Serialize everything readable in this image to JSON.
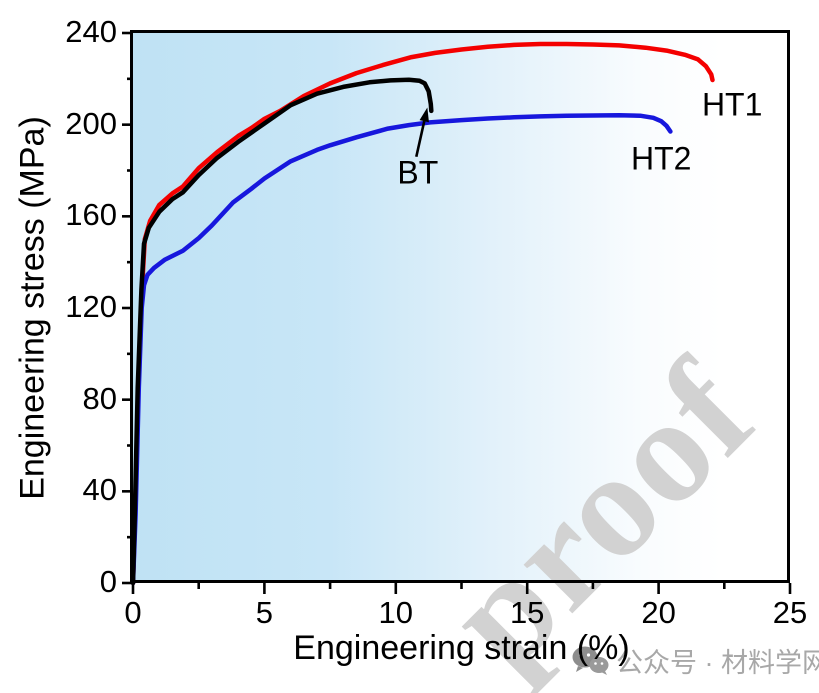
{
  "watermarks": {
    "proof": "proof",
    "credit": "公众号 · 材料学网"
  },
  "chart_data": {
    "type": "line",
    "title": "",
    "xlabel": "Engineering strain (%)",
    "ylabel": "Engineering stress (MPa)",
    "xlim": [
      0,
      25
    ],
    "ylim": [
      0,
      240
    ],
    "xticks": [
      0,
      5,
      10,
      15,
      20,
      25
    ],
    "yticks": [
      0,
      40,
      80,
      120,
      160,
      200,
      240
    ],
    "x_minor_ticks": [
      2.5,
      7.5,
      12.5,
      17.5,
      22.5
    ],
    "y_minor_ticks": [
      20,
      60,
      100,
      140,
      180,
      220
    ],
    "grid": false,
    "legend_position": "none",
    "plot_background": [
      "#bfe2f4",
      "#ffffff"
    ],
    "series": [
      {
        "name": "HT1",
        "color": "#f40000",
        "points": [
          [
            0,
            0
          ],
          [
            0.08,
            30
          ],
          [
            0.2,
            85
          ],
          [
            0.35,
            130
          ],
          [
            0.45,
            150
          ],
          [
            0.65,
            158
          ],
          [
            1,
            165
          ],
          [
            1.5,
            170
          ],
          [
            1.9,
            173
          ],
          [
            2.5,
            181
          ],
          [
            3.2,
            188
          ],
          [
            4,
            195
          ],
          [
            4.5,
            198.5
          ],
          [
            5,
            202.5
          ],
          [
            5.6,
            206
          ],
          [
            6.5,
            212.5
          ],
          [
            7.5,
            218
          ],
          [
            8.5,
            222.5
          ],
          [
            9.5,
            226
          ],
          [
            10.6,
            229.5
          ],
          [
            11.5,
            231.3
          ],
          [
            12.5,
            232.8
          ],
          [
            13.5,
            234
          ],
          [
            14.5,
            234.8
          ],
          [
            15.5,
            235.2
          ],
          [
            16.5,
            235.2
          ],
          [
            17.5,
            235
          ],
          [
            18.5,
            234.6
          ],
          [
            19.5,
            233.6
          ],
          [
            20.3,
            232.3
          ],
          [
            21,
            230.5
          ],
          [
            21.5,
            228.5
          ],
          [
            21.8,
            225.5
          ],
          [
            22,
            222
          ],
          [
            22.05,
            219.5
          ]
        ]
      },
      {
        "name": "HT2",
        "color": "#1717dd",
        "points": [
          [
            0,
            0
          ],
          [
            0.1,
            30
          ],
          [
            0.22,
            85
          ],
          [
            0.33,
            120
          ],
          [
            0.42,
            130
          ],
          [
            0.55,
            134.5
          ],
          [
            0.8,
            137.5
          ],
          [
            1.2,
            141
          ],
          [
            1.9,
            145
          ],
          [
            2.5,
            150.5
          ],
          [
            3,
            156
          ],
          [
            3.8,
            166
          ],
          [
            4.5,
            172
          ],
          [
            5,
            176.5
          ],
          [
            6,
            184
          ],
          [
            7,
            189
          ],
          [
            7.5,
            191
          ],
          [
            8.5,
            194.5
          ],
          [
            9.7,
            198.3
          ],
          [
            10.5,
            199.8
          ],
          [
            11.3,
            201
          ],
          [
            12.5,
            202
          ],
          [
            13.5,
            202.7
          ],
          [
            14.5,
            203.2
          ],
          [
            15.5,
            203.6
          ],
          [
            16.5,
            203.9
          ],
          [
            17.5,
            204
          ],
          [
            18.5,
            204.1
          ],
          [
            19.3,
            203.9
          ],
          [
            19.8,
            203
          ],
          [
            20.1,
            201.5
          ],
          [
            20.3,
            199.5
          ],
          [
            20.45,
            197
          ]
        ]
      },
      {
        "name": "BT",
        "color": "#000000",
        "points": [
          [
            0,
            0
          ],
          [
            0.07,
            30
          ],
          [
            0.18,
            85
          ],
          [
            0.32,
            128
          ],
          [
            0.42,
            148
          ],
          [
            0.6,
            155
          ],
          [
            1,
            162
          ],
          [
            1.5,
            167.5
          ],
          [
            1.9,
            170.5
          ],
          [
            2.5,
            178
          ],
          [
            3.2,
            185.5
          ],
          [
            4,
            192.5
          ],
          [
            5,
            200.5
          ],
          [
            6,
            208.5
          ],
          [
            7,
            213.5
          ],
          [
            8,
            216.5
          ],
          [
            9,
            218.5
          ],
          [
            9.8,
            219.3
          ],
          [
            10.5,
            219.6
          ],
          [
            10.9,
            219.2
          ],
          [
            11.1,
            218
          ],
          [
            11.25,
            214.5
          ],
          [
            11.33,
            209
          ],
          [
            11.35,
            206
          ]
        ]
      }
    ],
    "annotations": [
      {
        "label": "HT1",
        "x": 22.8,
        "y": 208.5
      },
      {
        "label": "HT2",
        "x": 20.1,
        "y": 185
      },
      {
        "label": "BT",
        "x": 10.84,
        "y": 179
      }
    ],
    "arrow": {
      "from": [
        10.78,
        186
      ],
      "to": [
        11.2,
        207.5
      ]
    }
  }
}
